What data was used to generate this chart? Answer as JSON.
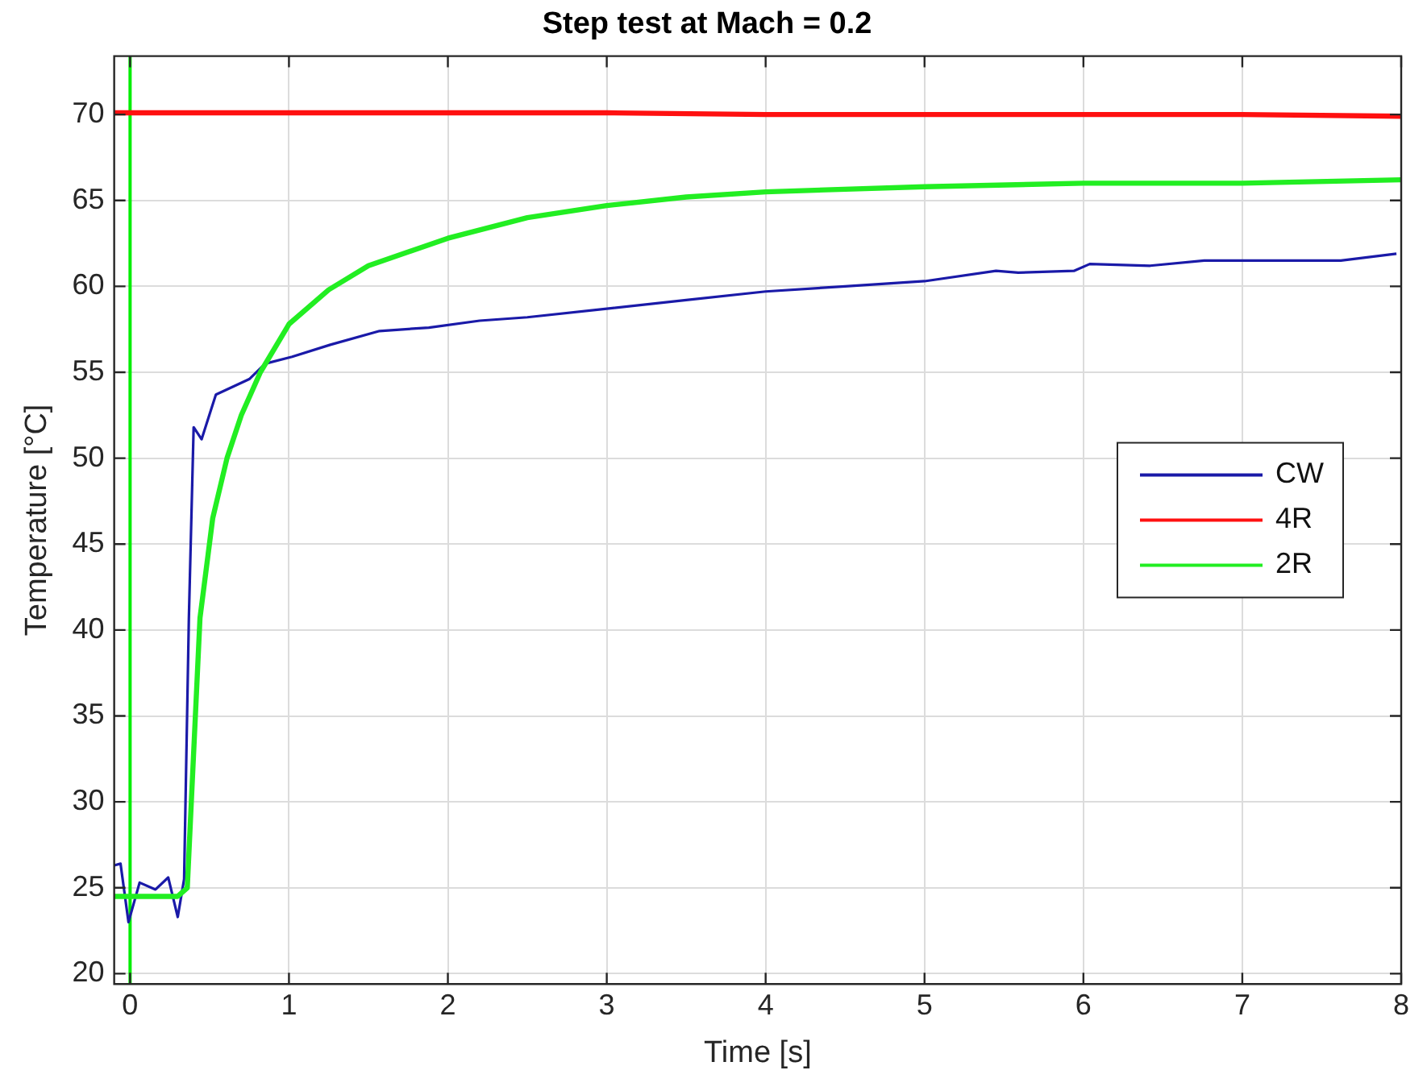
{
  "chart_data": {
    "type": "line",
    "title": "Step test at Mach = 0.2",
    "xlabel": "Time [s]",
    "ylabel": "Temperature [°C]",
    "xlim": [
      -0.1,
      8
    ],
    "ylim": [
      19.4,
      73.4
    ],
    "xticks": [
      0,
      1,
      2,
      3,
      4,
      5,
      6,
      7,
      8
    ],
    "yticks": [
      20,
      25,
      30,
      35,
      40,
      45,
      50,
      55,
      60,
      65,
      70
    ],
    "grid": true,
    "legend": "right",
    "marker": "none",
    "line_style": "solid",
    "ref_lines": [
      {
        "axis": "x",
        "value": 0,
        "color": "#00ee00"
      }
    ],
    "series": [
      {
        "name": "CW",
        "color": "#1a1aa8",
        "x": [
          -0.1,
          -0.06,
          -0.01,
          0.06,
          0.16,
          0.24,
          0.3,
          0.34,
          0.37,
          0.4,
          0.45,
          0.54,
          0.75,
          0.85,
          1.02,
          1.26,
          1.57,
          1.88,
          2.2,
          2.5,
          3,
          3.5,
          4,
          4.5,
          5,
          5.45,
          5.59,
          5.94,
          6.04,
          6.42,
          6.76,
          7.28,
          7.62,
          7.97
        ],
        "values": [
          26.3,
          26.4,
          23,
          25.3,
          24.9,
          25.6,
          23.3,
          25.5,
          40.7,
          51.8,
          51.1,
          53.7,
          54.6,
          55.5,
          55.9,
          56.6,
          57.4,
          57.6,
          58,
          58.2,
          58.7,
          59.2,
          59.7,
          60,
          60.3,
          60.9,
          60.8,
          60.9,
          61.3,
          61.2,
          61.5,
          61.5,
          61.5,
          61.9
        ]
      },
      {
        "name": "4R",
        "color": "#ff1010",
        "x": [
          -0.1,
          1,
          2,
          3,
          4,
          5,
          6,
          7,
          8
        ],
        "values": [
          70.1,
          70.1,
          70.1,
          70.1,
          70,
          70,
          70,
          70,
          69.9
        ]
      },
      {
        "name": "2R",
        "color": "#22ee22",
        "x": [
          -0.1,
          0.1,
          0.2,
          0.3,
          0.36,
          0.44,
          0.52,
          0.61,
          0.7,
          0.82,
          1,
          1.25,
          1.5,
          2,
          2.5,
          3,
          3.5,
          4,
          5,
          6,
          7,
          8
        ],
        "values": [
          24.5,
          24.5,
          24.5,
          24.5,
          25,
          40.7,
          46.5,
          50,
          52.5,
          55,
          57.8,
          59.8,
          61.2,
          62.8,
          64,
          64.7,
          65.2,
          65.5,
          65.8,
          66,
          66,
          66.2
        ]
      }
    ]
  }
}
